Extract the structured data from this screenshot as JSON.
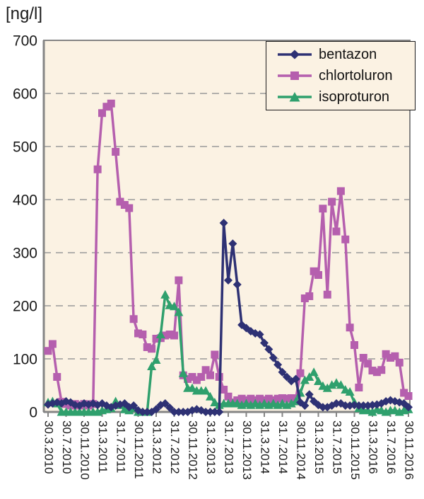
{
  "title": "[ng/l]",
  "colors": {
    "bentazon": "#2e3174",
    "chlortoluron": "#b55fae",
    "isoproturon": "#2fa06d",
    "grid": "#9a9a9a",
    "axis": "#858585",
    "plot_bg": "#fbf2e3",
    "legend_border": "#1a1a1a",
    "text": "#1a1a1a"
  },
  "chart_data": {
    "type": "line",
    "title": "[ng/l]",
    "ylabel": "[ng/l]",
    "ylim": [
      0,
      700
    ],
    "ytick_interval": 100,
    "y_tick_labels": [
      "0",
      "100",
      "200",
      "300",
      "400",
      "500",
      "600",
      "700"
    ],
    "grid": "horizontal dashed",
    "legend_position": "top-right",
    "x_sampling": "monthly, March 2010 - November 2016",
    "months_per_labeled_tick": 4,
    "x_tick_labels": [
      "30.3.2010",
      "30.7.2010",
      "30.11.2010",
      "31.3.2011",
      "31.7.2011",
      "30.11.2011",
      "31.3.2012",
      "31.7.2012",
      "30.11.2012",
      "31.3.2013",
      "31.7.2013",
      "30.11.2013",
      "31.3.2014",
      "31.7.2014",
      "30.11.2014",
      "31.3.2015",
      "31.7.2015",
      "30.11.2015",
      "31.3.2016",
      "31.7.2016",
      "30.11.2016"
    ],
    "series": [
      {
        "name": "bentazon",
        "marker": "diamond",
        "color": "#2e3174",
        "values": [
          14,
          16,
          18,
          16,
          20,
          18,
          13,
          12,
          16,
          14,
          16,
          13,
          16,
          12,
          9,
          12,
          14,
          16,
          9,
          12,
          3,
          0,
          0,
          0,
          5,
          13,
          16,
          8,
          0,
          0,
          0,
          0,
          3,
          5,
          3,
          0,
          0,
          0,
          0,
          356,
          248,
          317,
          240,
          164,
          158,
          152,
          148,
          146,
          130,
          118,
          102,
          89,
          75,
          66,
          58,
          62,
          18,
          12,
          33,
          20,
          13,
          9,
          9,
          12,
          16,
          16,
          12,
          12,
          13,
          12,
          12,
          12,
          13,
          14,
          16,
          20,
          22,
          20,
          18,
          16,
          9
        ]
      },
      {
        "name": "chlortoluron",
        "marker": "square",
        "color": "#b55fae",
        "values": [
          115,
          128,
          66,
          19,
          15,
          12,
          15,
          12,
          15,
          12,
          15,
          457,
          563,
          575,
          581,
          490,
          396,
          390,
          384,
          175,
          148,
          146,
          122,
          119,
          138,
          139,
          144,
          146,
          144,
          248,
          69,
          62,
          66,
          60,
          66,
          79,
          69,
          108,
          66,
          42,
          29,
          18,
          22,
          25,
          22,
          25,
          22,
          25,
          22,
          25,
          22,
          25,
          26,
          25,
          26,
          25,
          73,
          214,
          218,
          265,
          258,
          383,
          221,
          396,
          340,
          416,
          325,
          159,
          126,
          46,
          102,
          91,
          78,
          75,
          79,
          109,
          102,
          105,
          93,
          36,
          30
        ]
      },
      {
        "name": "isoproturon",
        "marker": "triangle",
        "color": "#2fa06d",
        "values": [
          18,
          20,
          16,
          0,
          0,
          0,
          0,
          0,
          0,
          0,
          0,
          0,
          3,
          5,
          7,
          20,
          13,
          5,
          3,
          7,
          0,
          0,
          0,
          86,
          98,
          146,
          221,
          201,
          199,
          188,
          73,
          45,
          45,
          40,
          40,
          40,
          29,
          18,
          13,
          16,
          16,
          16,
          16,
          13,
          16,
          13,
          16,
          13,
          16,
          13,
          16,
          13,
          16,
          13,
          16,
          20,
          36,
          60,
          66,
          75,
          58,
          49,
          45,
          51,
          55,
          51,
          42,
          38,
          18,
          7,
          3,
          3,
          0,
          5,
          3,
          0,
          3,
          3,
          0,
          3,
          5
        ]
      }
    ]
  }
}
